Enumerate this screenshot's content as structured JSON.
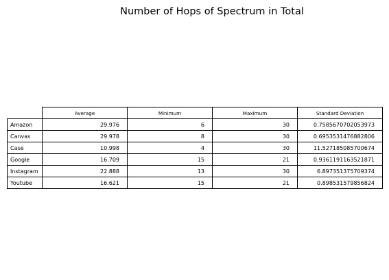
{
  "chart_data": {
    "type": "table",
    "title": "Number of Hops of Spectrum in Total",
    "columns": [
      "Average",
      "Minimum",
      "Maximum",
      "Standard Deviation"
    ],
    "rows": [
      {
        "label": "Amazon",
        "values": [
          "29.976",
          "6",
          "30",
          "0.7585670702053973"
        ]
      },
      {
        "label": "Canvas",
        "values": [
          "29.978",
          "8",
          "30",
          "0.6953531476882806"
        ]
      },
      {
        "label": "Case",
        "values": [
          "10.998",
          "4",
          "30",
          "11.527185085700674"
        ]
      },
      {
        "label": "Google",
        "values": [
          "16.709",
          "15",
          "21",
          "0.9361191163521871"
        ]
      },
      {
        "label": "Instagram",
        "values": [
          "22.888",
          "13",
          "30",
          "6.897351375709374"
        ]
      },
      {
        "label": "Youtube",
        "values": [
          "16.621",
          "15",
          "21",
          "0.898531579856824"
        ]
      }
    ]
  }
}
